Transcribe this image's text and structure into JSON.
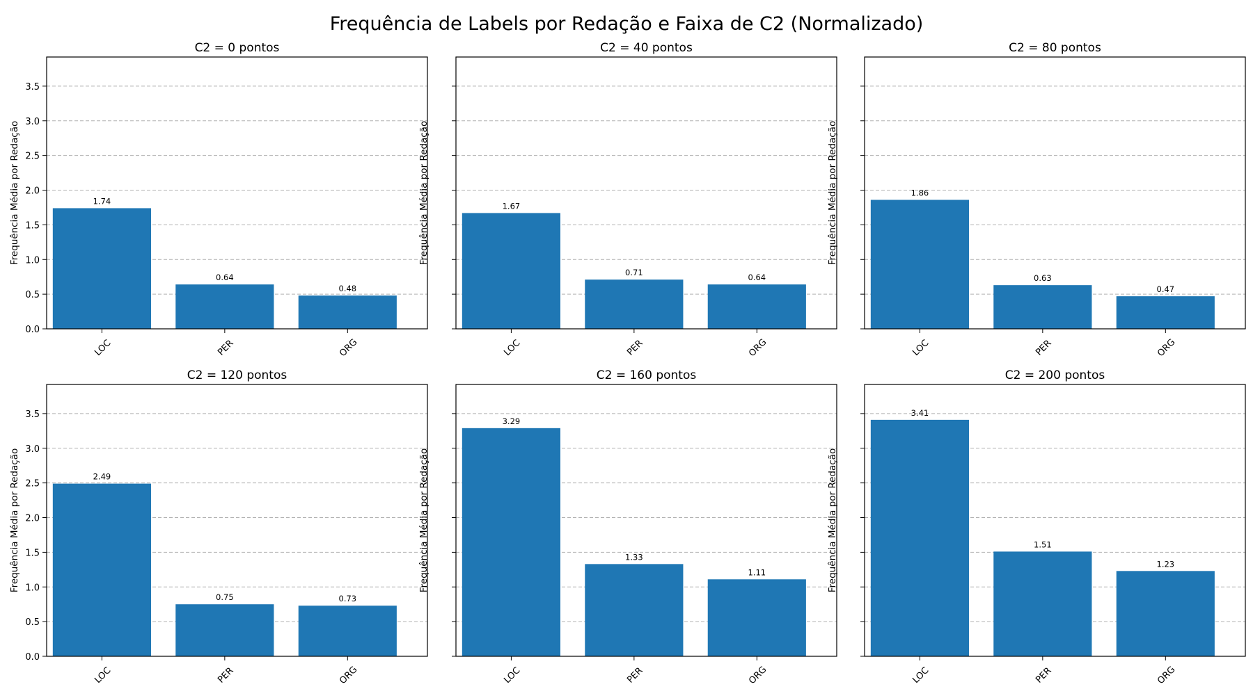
{
  "figure_title": "Frequência de Labels por Redação e Faixa de C2 (Normalizado)",
  "chart_data": [
    {
      "type": "bar",
      "title": "C2 = 0 pontos",
      "categories": [
        "LOC",
        "PER",
        "ORG"
      ],
      "values": [
        1.74,
        0.64,
        0.48
      ],
      "value_labels": [
        "1.74",
        "0.64",
        "0.48"
      ],
      "xlabel": "",
      "ylabel": "Frequência Média por Redação",
      "ylim": [
        0,
        3.92
      ],
      "yticks": [
        "0.0",
        "0.5",
        "1.0",
        "1.5",
        "2.0",
        "2.5",
        "3.0",
        "3.5"
      ],
      "grid": "y, dashed",
      "bar_color": "#1f77b4"
    },
    {
      "type": "bar",
      "title": "C2 = 40 pontos",
      "categories": [
        "LOC",
        "PER",
        "ORG"
      ],
      "values": [
        1.67,
        0.71,
        0.64
      ],
      "value_labels": [
        "1.67",
        "0.71",
        "0.64"
      ],
      "xlabel": "",
      "ylabel": "Frequência Média por Redação",
      "ylim": [
        0,
        3.92
      ],
      "yticks": [],
      "grid": "y, dashed",
      "bar_color": "#1f77b4"
    },
    {
      "type": "bar",
      "title": "C2 = 80 pontos",
      "categories": [
        "LOC",
        "PER",
        "ORG"
      ],
      "values": [
        1.86,
        0.63,
        0.47
      ],
      "value_labels": [
        "1.86",
        "0.63",
        "0.47"
      ],
      "xlabel": "",
      "ylabel": "Frequência Média por Redação",
      "ylim": [
        0,
        3.92
      ],
      "yticks": [],
      "grid": "y, dashed",
      "bar_color": "#1f77b4"
    },
    {
      "type": "bar",
      "title": "C2 = 120 pontos",
      "categories": [
        "LOC",
        "PER",
        "ORG"
      ],
      "values": [
        2.49,
        0.75,
        0.73
      ],
      "value_labels": [
        "2.49",
        "0.75",
        "0.73"
      ],
      "xlabel": "",
      "ylabel": "Frequência Média por Redação",
      "ylim": [
        0,
        3.92
      ],
      "yticks": [
        "0.0",
        "0.5",
        "1.0",
        "1.5",
        "2.0",
        "2.5",
        "3.0",
        "3.5"
      ],
      "grid": "y, dashed",
      "bar_color": "#1f77b4"
    },
    {
      "type": "bar",
      "title": "C2 = 160 pontos",
      "categories": [
        "LOC",
        "PER",
        "ORG"
      ],
      "values": [
        3.29,
        1.33,
        1.11
      ],
      "value_labels": [
        "3.29",
        "1.33",
        "1.11"
      ],
      "xlabel": "",
      "ylabel": "Frequência Média por Redação",
      "ylim": [
        0,
        3.92
      ],
      "yticks": [],
      "grid": "y, dashed",
      "bar_color": "#1f77b4"
    },
    {
      "type": "bar",
      "title": "C2 = 200 pontos",
      "categories": [
        "LOC",
        "PER",
        "ORG"
      ],
      "values": [
        3.41,
        1.51,
        1.23
      ],
      "value_labels": [
        "3.41",
        "1.51",
        "1.23"
      ],
      "xlabel": "",
      "ylabel": "Frequência Média por Redação",
      "ylim": [
        0,
        3.92
      ],
      "yticks": [],
      "grid": "y, dashed",
      "bar_color": "#1f77b4"
    }
  ]
}
